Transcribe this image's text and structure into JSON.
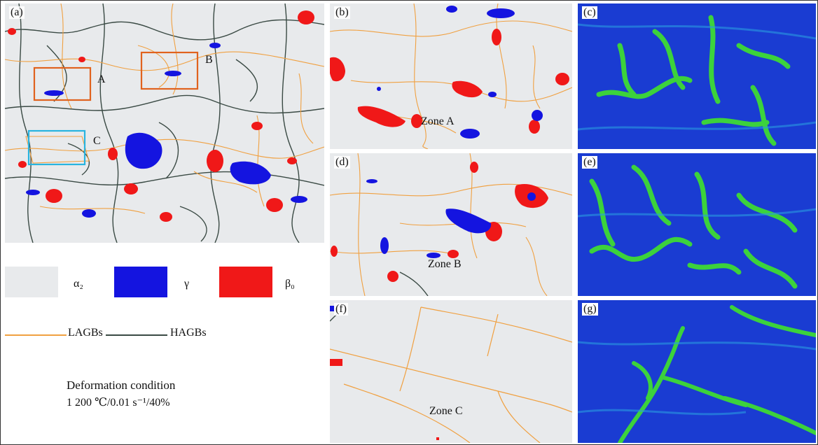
{
  "colors": {
    "alpha2": "#e8eaec",
    "gamma": "#1414e0",
    "beta0": "#f01818",
    "lagb": "#f0a040",
    "hagb": "#3a4a44",
    "kam_background": "#1a3cd2",
    "kam_band": "#3cd23c",
    "box_a": "#e0621e",
    "box_b": "#e0621e",
    "box_c": "#28b4e0"
  },
  "panels": {
    "a": {
      "letter": "(a)",
      "box_a": "A",
      "box_b": "B",
      "box_c": "C"
    },
    "b": {
      "letter": "(b)",
      "zone": "Zone A"
    },
    "c": {
      "letter": "(c)"
    },
    "d": {
      "letter": "(d)",
      "zone": "Zone B"
    },
    "e": {
      "letter": "(e)"
    },
    "f": {
      "letter": "(f)",
      "zone": "Zone C"
    },
    "g": {
      "letter": "(g)"
    }
  },
  "legend": {
    "alpha2": "α₂",
    "gamma": "γ",
    "beta0": "β₀",
    "lagb": "LAGBs",
    "hagb": "HAGBs"
  },
  "condition": {
    "title": "Deformation condition",
    "value": "1 200 ℃/0.01 s⁻¹/40%"
  }
}
